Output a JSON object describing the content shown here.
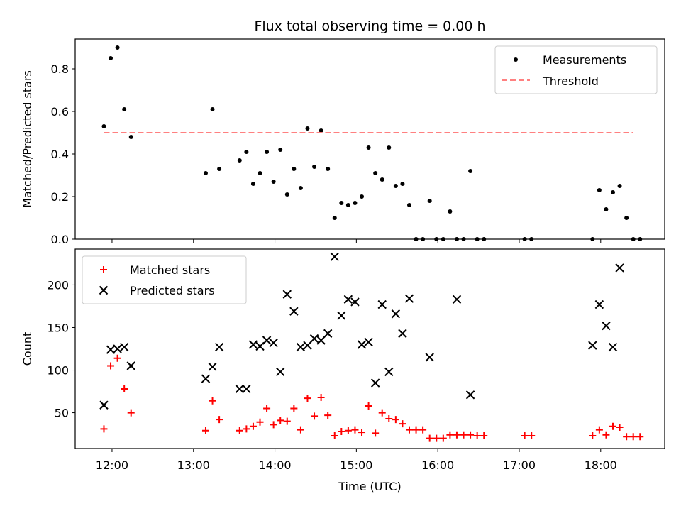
{
  "chart_data": [
    {
      "type": "scatter",
      "title": "Flux total observing time = 0.00 h",
      "ylabel": "Matched/Predicted stars",
      "xlabel": "",
      "ylim": [
        0,
        0.94
      ],
      "yticks": [
        "0.0",
        "0.2",
        "0.4",
        "0.6",
        "0.8"
      ],
      "legend_position": "top-right",
      "series": [
        {
          "name": "Measurements",
          "kind": "points",
          "color": "#000000",
          "x": [
            "11:54",
            "11:59",
            "12:04",
            "12:09",
            "12:14",
            "13:09",
            "13:14",
            "13:19",
            "13:34",
            "13:39",
            "13:44",
            "13:49",
            "13:54",
            "13:59",
            "14:04",
            "14:09",
            "14:14",
            "14:19",
            "14:24",
            "14:29",
            "14:34",
            "14:39",
            "14:44",
            "14:49",
            "14:54",
            "14:59",
            "15:04",
            "15:09",
            "15:14",
            "15:19",
            "15:24",
            "15:29",
            "15:34",
            "15:39",
            "15:44",
            "15:49",
            "15:54",
            "15:59",
            "16:04",
            "16:09",
            "16:14",
            "16:19",
            "16:24",
            "16:29",
            "16:34",
            "17:04",
            "17:09",
            "17:54",
            "17:59",
            "18:04",
            "18:09",
            "18:14",
            "18:19",
            "18:24",
            "18:29"
          ],
          "y": [
            0.53,
            0.85,
            0.9,
            0.61,
            0.48,
            0.31,
            0.61,
            0.33,
            0.37,
            0.41,
            0.26,
            0.31,
            0.41,
            0.27,
            0.42,
            0.21,
            0.33,
            0.24,
            0.52,
            0.34,
            0.51,
            0.33,
            0.1,
            0.17,
            0.16,
            0.17,
            0.2,
            0.43,
            0.31,
            0.28,
            0.43,
            0.25,
            0.26,
            0.16,
            0.0,
            0.0,
            0.18,
            0.0,
            0.0,
            0.13,
            0.0,
            0.0,
            0.32,
            0.0,
            0.0,
            0.0,
            0.0,
            0.0,
            0.23,
            0.14,
            0.22,
            0.25,
            0.1,
            0.0,
            0.0
          ]
        },
        {
          "name": "Threshold",
          "kind": "dashed-line",
          "color": "#ff8080",
          "x": [
            "11:54",
            "18:24"
          ],
          "y": [
            0.5,
            0.5
          ]
        }
      ]
    },
    {
      "type": "scatter",
      "title": "",
      "ylabel": "Count",
      "xlabel": "Time (UTC)",
      "ylim": [
        8,
        242
      ],
      "yticks": [
        "50",
        "100",
        "150",
        "200"
      ],
      "xticks": [
        "12:00",
        "13:00",
        "14:00",
        "15:00",
        "16:00",
        "17:00",
        "18:00"
      ],
      "legend_position": "top-left",
      "series": [
        {
          "name": "Matched stars",
          "marker": "plus",
          "color": "#ff0000",
          "x": [
            "11:54",
            "11:59",
            "12:04",
            "12:09",
            "12:14",
            "13:09",
            "13:14",
            "13:19",
            "13:34",
            "13:39",
            "13:44",
            "13:49",
            "13:54",
            "13:59",
            "14:04",
            "14:09",
            "14:14",
            "14:19",
            "14:24",
            "14:29",
            "14:34",
            "14:39",
            "14:44",
            "14:49",
            "14:54",
            "14:59",
            "15:04",
            "15:09",
            "15:14",
            "15:19",
            "15:24",
            "15:29",
            "15:34",
            "15:39",
            "15:44",
            "15:49",
            "15:54",
            "15:59",
            "16:04",
            "16:09",
            "16:14",
            "16:19",
            "16:24",
            "16:29",
            "16:34",
            "17:04",
            "17:09",
            "17:54",
            "17:59",
            "18:04",
            "18:09",
            "18:14",
            "18:19",
            "18:24",
            "18:29"
          ],
          "y": [
            31,
            105,
            114,
            78,
            50,
            29,
            64,
            42,
            29,
            31,
            34,
            39,
            55,
            36,
            41,
            40,
            55,
            30,
            67,
            46,
            68,
            47,
            23,
            28,
            29,
            30,
            27,
            58,
            26,
            50,
            43,
            42,
            37,
            30,
            30,
            30,
            20,
            20,
            20,
            24,
            24,
            24,
            24,
            23,
            23,
            23,
            23,
            23,
            30,
            24,
            34,
            33,
            22,
            22,
            22
          ]
        },
        {
          "name": "Predicted stars",
          "marker": "x",
          "color": "#000000",
          "x": [
            "11:54",
            "11:59",
            "12:04",
            "12:09",
            "12:14",
            "13:09",
            "13:14",
            "13:19",
            "13:34",
            "13:39",
            "13:44",
            "13:49",
            "13:54",
            "13:59",
            "14:04",
            "14:09",
            "14:14",
            "14:19",
            "14:24",
            "14:29",
            "14:34",
            "14:39",
            "14:44",
            "14:49",
            "14:54",
            "14:59",
            "15:04",
            "15:09",
            "15:14",
            "15:19",
            "15:24",
            "15:29",
            "15:34",
            "15:39",
            "15:54",
            "16:14",
            "16:24",
            "17:54",
            "17:59",
            "18:04",
            "18:09",
            "18:14"
          ],
          "y": [
            59,
            124,
            125,
            127,
            105,
            90,
            104,
            127,
            78,
            78,
            130,
            128,
            135,
            132,
            98,
            189,
            169,
            127,
            129,
            137,
            135,
            143,
            233,
            164,
            183,
            180,
            130,
            133,
            85,
            177,
            98,
            166,
            143,
            184,
            115,
            183,
            71,
            129,
            177,
            152,
            127,
            220
          ]
        }
      ]
    }
  ]
}
